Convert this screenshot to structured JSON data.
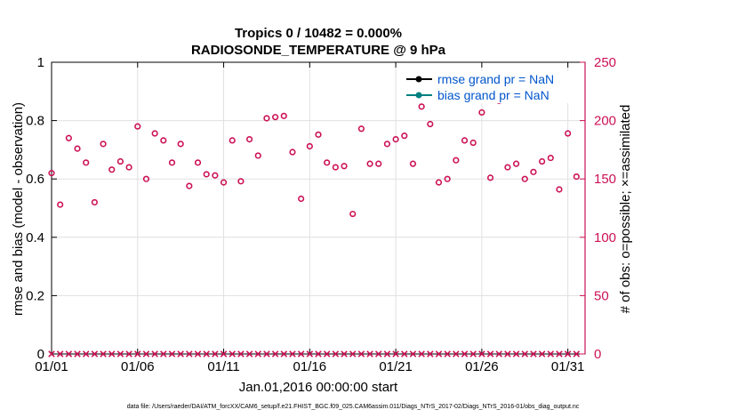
{
  "chart_data": {
    "type": "scatter",
    "title": "Tropics 0 / 10482 = 0.000%",
    "subtitle": "RADIOSONDE_TEMPERATURE @ 9 hPa",
    "xlabel": "Jan.01,2016 00:00:00 start",
    "ylabel_left": "rmse and bias (model - observation)",
    "ylabel_right": "# of obs: o=possible; ×=assimilated",
    "x_ticks": [
      "01/01",
      "01/06",
      "01/11",
      "01/16",
      "01/21",
      "01/26",
      "01/31"
    ],
    "x_range": [
      1,
      32
    ],
    "y_left_range": [
      0,
      1
    ],
    "y_left_ticks": [
      "0",
      "0.2",
      "0.4",
      "0.6",
      "0.8",
      "1"
    ],
    "y_right_range": [
      0,
      250
    ],
    "y_right_ticks": [
      "0",
      "50",
      "100",
      "150",
      "200",
      "250"
    ],
    "grid": true,
    "legend": [
      {
        "label": "rmse grand pr = NaN",
        "color": "#000000"
      },
      {
        "label": "bias grand pr = NaN",
        "color": "#008080"
      }
    ],
    "legend_position": "top-right",
    "series": [
      {
        "name": "possible",
        "marker": "o",
        "axis": "right",
        "color": "#cc1155",
        "x": [
          1.0,
          1.5,
          2.0,
          2.5,
          3.0,
          3.5,
          4.0,
          4.5,
          5.0,
          5.5,
          6.0,
          6.5,
          7.0,
          7.5,
          8.0,
          8.5,
          9.0,
          9.5,
          10.0,
          10.5,
          11.0,
          11.5,
          12.0,
          12.5,
          13.0,
          13.5,
          14.0,
          14.5,
          15.0,
          15.5,
          16.0,
          16.5,
          17.0,
          17.5,
          18.0,
          18.5,
          19.0,
          19.5,
          20.0,
          20.5,
          21.0,
          21.5,
          22.0,
          22.5,
          23.0,
          23.5,
          24.0,
          24.5,
          25.0,
          25.5,
          26.0,
          26.5,
          27.0,
          27.5,
          28.0,
          28.5,
          29.0,
          29.5,
          30.0,
          30.5,
          31.0,
          31.5
        ],
        "values": [
          155,
          128,
          185,
          176,
          164,
          130,
          180,
          158,
          165,
          160,
          195,
          150,
          189,
          183,
          164,
          180,
          144,
          164,
          154,
          153,
          147,
          183,
          148,
          184,
          170,
          202,
          203,
          204,
          173,
          133,
          178,
          188,
          164,
          160,
          161,
          120,
          193,
          163,
          163,
          180,
          184,
          187,
          163,
          212,
          197,
          147,
          150,
          166,
          183,
          181,
          207,
          151,
          217,
          160,
          163,
          150,
          156,
          165,
          168,
          141,
          189,
          152
        ]
      },
      {
        "name": "assimilated",
        "marker": "x",
        "axis": "right",
        "color": "#cc1155",
        "x": [
          1.0,
          1.5,
          2.0,
          2.5,
          3.0,
          3.5,
          4.0,
          4.5,
          5.0,
          5.5,
          6.0,
          6.5,
          7.0,
          7.5,
          8.0,
          8.5,
          9.0,
          9.5,
          10.0,
          10.5,
          11.0,
          11.5,
          12.0,
          12.5,
          13.0,
          13.5,
          14.0,
          14.5,
          15.0,
          15.5,
          16.0,
          16.5,
          17.0,
          17.5,
          18.0,
          18.5,
          19.0,
          19.5,
          20.0,
          20.5,
          21.0,
          21.5,
          22.0,
          22.5,
          23.0,
          23.5,
          24.0,
          24.5,
          25.0,
          25.5,
          26.0,
          26.5,
          27.0,
          27.5,
          28.0,
          28.5,
          29.0,
          29.5,
          30.0,
          30.5,
          31.0,
          31.5
        ],
        "values": [
          0,
          0,
          0,
          0,
          0,
          0,
          0,
          0,
          0,
          0,
          0,
          0,
          0,
          0,
          0,
          0,
          0,
          0,
          0,
          0,
          0,
          0,
          0,
          0,
          0,
          0,
          0,
          0,
          0,
          0,
          0,
          0,
          0,
          0,
          0,
          0,
          0,
          0,
          0,
          0,
          0,
          0,
          0,
          0,
          0,
          0,
          0,
          0,
          0,
          0,
          0,
          0,
          0,
          0,
          0,
          0,
          0,
          0,
          0,
          0,
          0,
          0
        ]
      }
    ],
    "footer": "data file: /Users/raeder/DAI/ATM_forcXX/CAM6_setup/f.e21.FHIST_BGC.f09_025.CAM6assim.011/Diags_NTrS_2017-02/Diags_NTrS_2016-01/obs_diag_output.nc",
    "colors": {
      "right_axis": "#cc1155",
      "legend_text": "#0055cc",
      "grid": "#e0e0e0"
    }
  }
}
